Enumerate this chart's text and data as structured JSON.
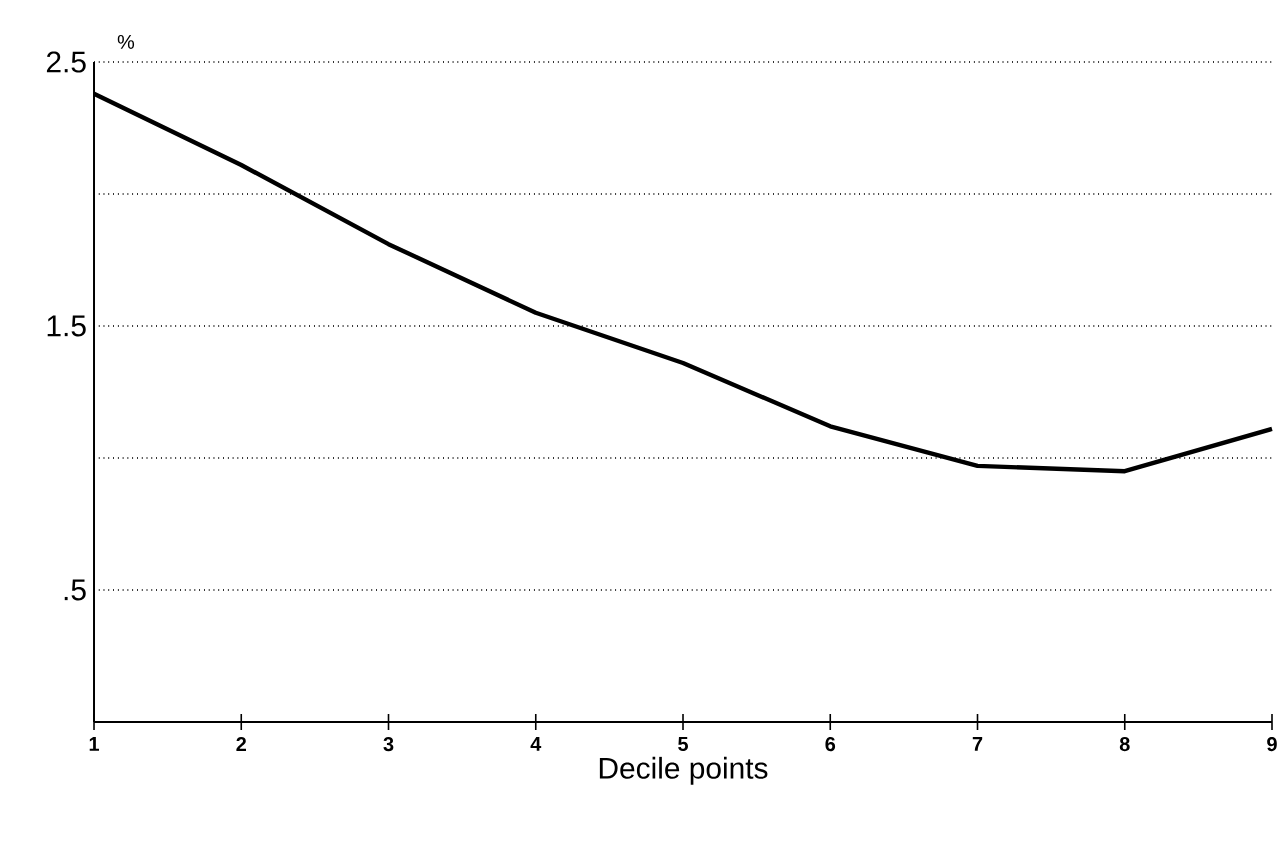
{
  "chart_data": {
    "type": "line",
    "xlabel": "Decile points",
    "ylabel": "%",
    "x": [
      1,
      2,
      3,
      4,
      5,
      6,
      7,
      8,
      9
    ],
    "series": [
      {
        "color": "#000000",
        "values": [
          2.38,
          2.11,
          1.81,
          1.55,
          1.36,
          1.12,
          0.97,
          0.95,
          1.11
        ]
      }
    ],
    "xlim": [
      1,
      9
    ],
    "xticks": [
      1,
      2,
      3,
      4,
      5,
      6,
      7,
      8,
      9
    ],
    "ylim": [
      0,
      2.5
    ],
    "yticks": [
      {
        "value": 0.5,
        "label": ".5"
      },
      {
        "value": 1,
        "label": null
      },
      1.5,
      {
        "value": 2,
        "label": null
      },
      2.5
    ],
    "grid": "y",
    "line_style": "solid",
    "marker": "none"
  }
}
